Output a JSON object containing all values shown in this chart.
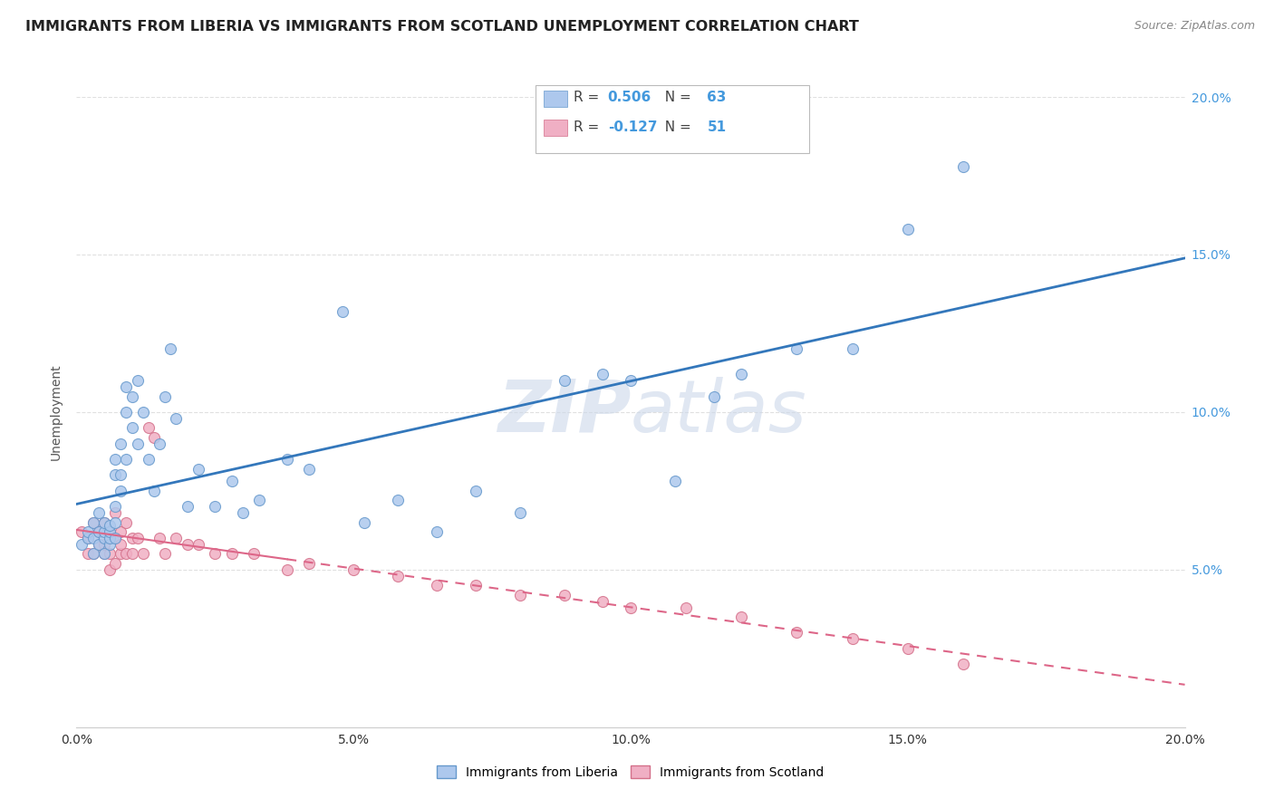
{
  "title": "IMMIGRANTS FROM LIBERIA VS IMMIGRANTS FROM SCOTLAND UNEMPLOYMENT CORRELATION CHART",
  "source": "Source: ZipAtlas.com",
  "ylabel": "Unemployment",
  "x_min": 0.0,
  "x_max": 0.2,
  "y_min": 0.0,
  "y_max": 0.2,
  "x_ticks": [
    0.0,
    0.05,
    0.1,
    0.15,
    0.2
  ],
  "x_tick_labels": [
    "0.0%",
    "5.0%",
    "10.0%",
    "15.0%",
    "20.0%"
  ],
  "y_ticks": [
    0.05,
    0.1,
    0.15,
    0.2
  ],
  "y_tick_labels": [
    "5.0%",
    "10.0%",
    "15.0%",
    "20.0%"
  ],
  "r_liberia": "0.506",
  "n_liberia": "63",
  "r_scotland": "-0.127",
  "n_scotland": "51",
  "liberia_color": "#adc8ed",
  "scotland_color": "#f0afc4",
  "liberia_edge": "#6699cc",
  "scotland_edge": "#d4708a",
  "regression_liberia_color": "#3377bb",
  "regression_scotland_color": "#dd6688",
  "watermark_color": "#ccd8ea",
  "background_color": "#ffffff",
  "liberia_x": [
    0.001,
    0.002,
    0.002,
    0.003,
    0.003,
    0.003,
    0.004,
    0.004,
    0.004,
    0.005,
    0.005,
    0.005,
    0.005,
    0.006,
    0.006,
    0.006,
    0.006,
    0.007,
    0.007,
    0.007,
    0.007,
    0.007,
    0.008,
    0.008,
    0.008,
    0.009,
    0.009,
    0.009,
    0.01,
    0.01,
    0.011,
    0.011,
    0.012,
    0.013,
    0.014,
    0.015,
    0.016,
    0.017,
    0.018,
    0.02,
    0.022,
    0.025,
    0.028,
    0.03,
    0.033,
    0.038,
    0.042,
    0.048,
    0.052,
    0.058,
    0.065,
    0.072,
    0.08,
    0.088,
    0.095,
    0.1,
    0.108,
    0.115,
    0.12,
    0.13,
    0.14,
    0.15,
    0.16
  ],
  "liberia_y": [
    0.058,
    0.06,
    0.062,
    0.055,
    0.06,
    0.065,
    0.058,
    0.062,
    0.068,
    0.055,
    0.06,
    0.062,
    0.065,
    0.058,
    0.06,
    0.062,
    0.064,
    0.06,
    0.065,
    0.07,
    0.08,
    0.085,
    0.075,
    0.08,
    0.09,
    0.085,
    0.1,
    0.108,
    0.095,
    0.105,
    0.09,
    0.11,
    0.1,
    0.085,
    0.075,
    0.09,
    0.105,
    0.12,
    0.098,
    0.07,
    0.082,
    0.07,
    0.078,
    0.068,
    0.072,
    0.085,
    0.082,
    0.132,
    0.065,
    0.072,
    0.062,
    0.075,
    0.068,
    0.11,
    0.112,
    0.11,
    0.078,
    0.105,
    0.112,
    0.12,
    0.12,
    0.158,
    0.178
  ],
  "scotland_x": [
    0.001,
    0.002,
    0.002,
    0.003,
    0.003,
    0.004,
    0.004,
    0.005,
    0.005,
    0.005,
    0.006,
    0.006,
    0.006,
    0.007,
    0.007,
    0.007,
    0.008,
    0.008,
    0.008,
    0.009,
    0.009,
    0.01,
    0.01,
    0.011,
    0.012,
    0.013,
    0.014,
    0.015,
    0.016,
    0.018,
    0.02,
    0.022,
    0.025,
    0.028,
    0.032,
    0.038,
    0.042,
    0.05,
    0.058,
    0.065,
    0.072,
    0.08,
    0.088,
    0.095,
    0.1,
    0.11,
    0.12,
    0.13,
    0.14,
    0.15,
    0.16
  ],
  "scotland_y": [
    0.062,
    0.055,
    0.06,
    0.065,
    0.055,
    0.058,
    0.062,
    0.065,
    0.055,
    0.058,
    0.05,
    0.055,
    0.062,
    0.052,
    0.06,
    0.068,
    0.055,
    0.058,
    0.062,
    0.065,
    0.055,
    0.06,
    0.055,
    0.06,
    0.055,
    0.095,
    0.092,
    0.06,
    0.055,
    0.06,
    0.058,
    0.058,
    0.055,
    0.055,
    0.055,
    0.05,
    0.052,
    0.05,
    0.048,
    0.045,
    0.045,
    0.042,
    0.042,
    0.04,
    0.038,
    0.038,
    0.035,
    0.03,
    0.028,
    0.025,
    0.02
  ],
  "grid_color": "#dddddd",
  "title_fontsize": 11.5,
  "axis_label_fontsize": 10,
  "tick_fontsize": 10,
  "source_fontsize": 9
}
